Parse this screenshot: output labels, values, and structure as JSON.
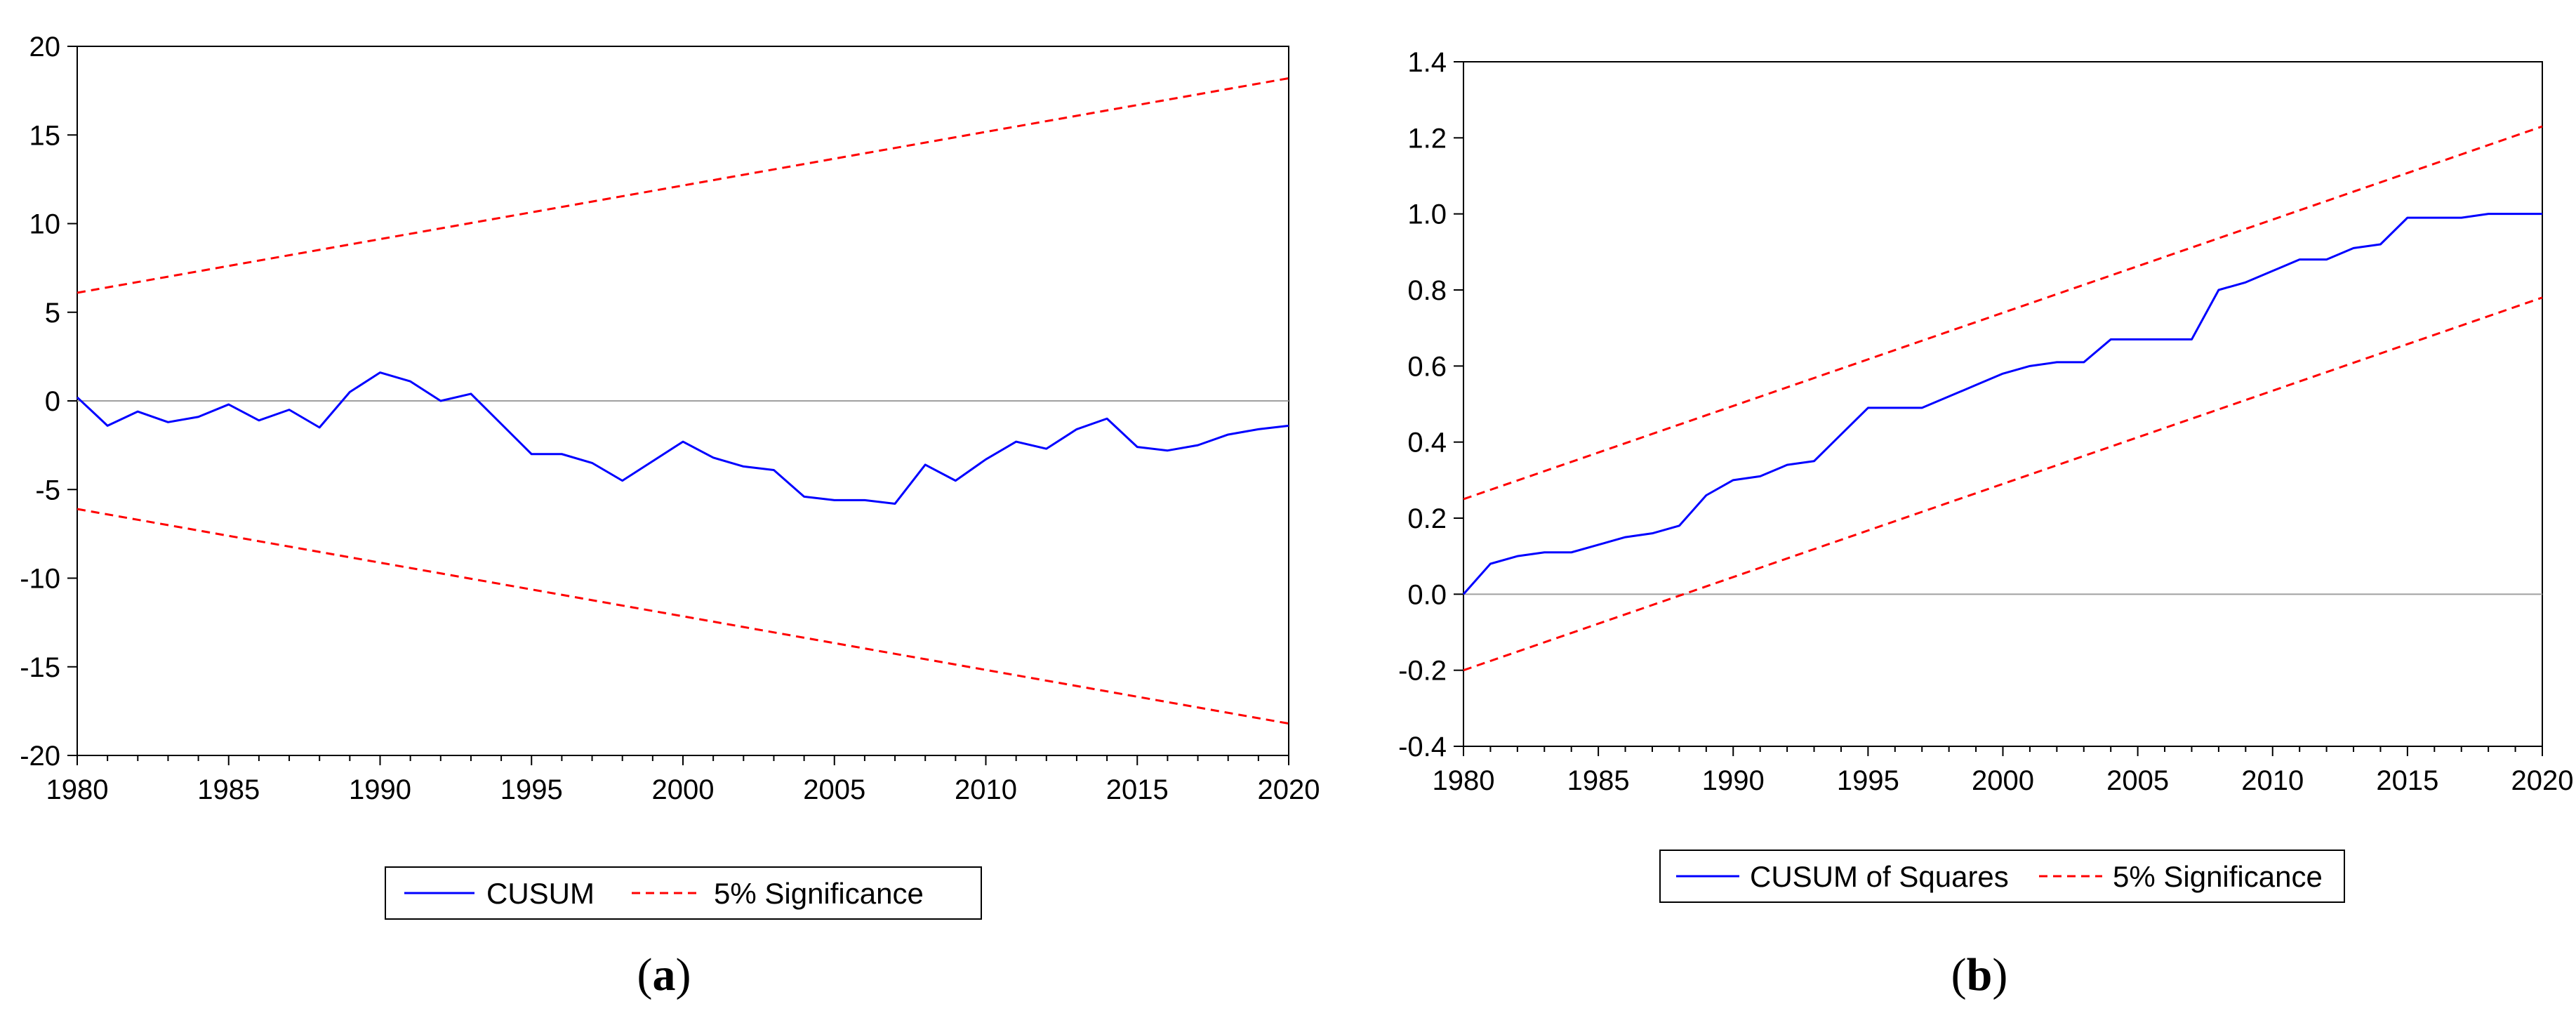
{
  "chart_data": [
    {
      "type": "line",
      "panel_label": "a",
      "title": "",
      "xlabel": "",
      "ylabel": "",
      "xlim": [
        1980,
        2020
      ],
      "ylim": [
        -20,
        20
      ],
      "x_ticks": [
        "1980",
        "1985",
        "1990",
        "1995",
        "2000",
        "2005",
        "2010",
        "2015",
        "2020"
      ],
      "y_ticks": [
        "20",
        "15",
        "10",
        "5",
        "0",
        "-5",
        "-10",
        "-15",
        "-20"
      ],
      "zero_line": 0,
      "series": [
        {
          "name": "CUSUM",
          "color": "#0000ff",
          "style": "solid",
          "x": [
            1980,
            1981,
            1982,
            1983,
            1984,
            1985,
            1986,
            1987,
            1988,
            1989,
            1990,
            1991,
            1992,
            1993,
            1994,
            1995,
            1996,
            1997,
            1998,
            1999,
            2000,
            2001,
            2002,
            2003,
            2004,
            2005,
            2006,
            2007,
            2008,
            2009,
            2010,
            2011,
            2012,
            2013,
            2014,
            2015,
            2016,
            2017,
            2018,
            2019,
            2020
          ],
          "y": [
            0.2,
            -1.4,
            -0.6,
            -1.2,
            -0.9,
            -0.2,
            -1.1,
            -0.5,
            -1.5,
            0.5,
            1.6,
            1.1,
            0.0,
            0.4,
            -1.3,
            -3.0,
            -3.0,
            -3.5,
            -4.5,
            -3.4,
            -2.3,
            -3.2,
            -3.7,
            -3.9,
            -5.4,
            -5.6,
            -5.6,
            -5.8,
            -3.6,
            -4.5,
            -3.3,
            -2.3,
            -2.7,
            -1.6,
            -1.0,
            -2.6,
            -2.8,
            -2.5,
            -1.9,
            -1.6,
            -1.4
          ]
        },
        {
          "name": "5% Significance",
          "color": "#ff0000",
          "style": "dashed",
          "x": [
            1980,
            2020
          ],
          "y": [
            6.1,
            18.2
          ]
        },
        {
          "name": "5% Significance",
          "color": "#ff0000",
          "style": "dashed",
          "x": [
            1980,
            2020
          ],
          "y": [
            -6.1,
            -18.2
          ]
        }
      ],
      "legend": [
        {
          "label": "CUSUM",
          "color": "#0000ff",
          "style": "solid"
        },
        {
          "label": "5% Significance",
          "color": "#ff0000",
          "style": "dashed"
        }
      ]
    },
    {
      "type": "line",
      "panel_label": "b",
      "title": "",
      "xlabel": "",
      "ylabel": "",
      "xlim": [
        1980,
        2020
      ],
      "ylim": [
        -0.4,
        1.4
      ],
      "x_ticks": [
        "1980",
        "1985",
        "1990",
        "1995",
        "2000",
        "2005",
        "2010",
        "2015",
        "2020"
      ],
      "y_ticks": [
        "1.4",
        "1.2",
        "1.0",
        "0.8",
        "0.6",
        "0.4",
        "0.2",
        "0.0",
        "-0.2",
        "-0.4"
      ],
      "zero_line": 0,
      "series": [
        {
          "name": "CUSUM of Squares",
          "color": "#0000ff",
          "style": "solid",
          "x": [
            1980,
            1981,
            1982,
            1983,
            1984,
            1985,
            1986,
            1987,
            1988,
            1989,
            1990,
            1991,
            1992,
            1993,
            1994,
            1995,
            1996,
            1997,
            1998,
            1999,
            2000,
            2001,
            2002,
            2003,
            2004,
            2005,
            2006,
            2007,
            2008,
            2009,
            2010,
            2011,
            2012,
            2013,
            2014,
            2015,
            2016,
            2017,
            2018,
            2019,
            2020
          ],
          "y": [
            0.0,
            0.08,
            0.1,
            0.11,
            0.11,
            0.13,
            0.15,
            0.16,
            0.18,
            0.26,
            0.3,
            0.31,
            0.34,
            0.35,
            0.42,
            0.49,
            0.49,
            0.49,
            0.52,
            0.55,
            0.58,
            0.6,
            0.61,
            0.61,
            0.67,
            0.67,
            0.67,
            0.67,
            0.8,
            0.82,
            0.85,
            0.88,
            0.88,
            0.91,
            0.92,
            0.99,
            0.99,
            0.99,
            1.0,
            1.0,
            1.0
          ]
        },
        {
          "name": "5% Significance",
          "color": "#ff0000",
          "style": "dashed",
          "x": [
            1980,
            2020
          ],
          "y": [
            0.25,
            1.23
          ]
        },
        {
          "name": "5% Significance",
          "color": "#ff0000",
          "style": "dashed",
          "x": [
            1980,
            2020
          ],
          "y": [
            -0.2,
            0.78
          ]
        }
      ],
      "legend": [
        {
          "label": "CUSUM of Squares",
          "color": "#0000ff",
          "style": "solid"
        },
        {
          "label": "5% Significance",
          "color": "#ff0000",
          "style": "dashed"
        }
      ]
    }
  ]
}
